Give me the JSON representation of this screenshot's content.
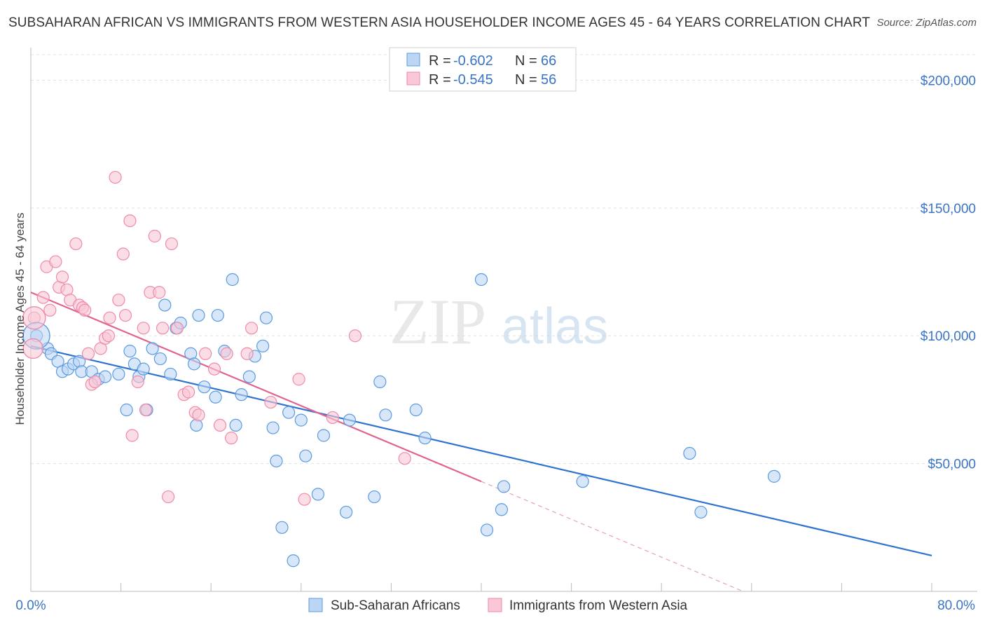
{
  "header": {
    "title": "SUBSAHARAN AFRICAN VS IMMIGRANTS FROM WESTERN ASIA HOUSEHOLDER INCOME AGES 45 - 64 YEARS CORRELATION CHART",
    "source": "Source: ZipAtlas.com"
  },
  "watermark": {
    "zip": "ZIP",
    "atlas": "atlas"
  },
  "legend": {
    "r_label": "R =",
    "n_label": "N =",
    "rows": [
      {
        "r": "-0.602",
        "n": "66",
        "color": "#5b9be0"
      },
      {
        "r": "-0.545",
        "n": "56",
        "color": "#f08aaa"
      }
    ]
  },
  "chart_data": {
    "type": "scatter",
    "title": "SUBSAHARAN AFRICAN VS IMMIGRANTS FROM WESTERN ASIA HOUSEHOLDER INCOME AGES 45 - 64 YEARS CORRELATION CHART",
    "xlabel": "",
    "ylabel": "Householder Income Ages 45 - 64 years",
    "xlim": [
      0,
      80
    ],
    "ylim": [
      0,
      210000
    ],
    "x_tick_labels": [
      "0.0%",
      "80.0%"
    ],
    "y_ticks": [
      {
        "value": 50000,
        "label": "$50,000"
      },
      {
        "value": 100000,
        "label": "$100,000"
      },
      {
        "value": 150000,
        "label": "$150,000"
      },
      {
        "value": 200000,
        "label": "$200,000"
      }
    ],
    "grid": true,
    "legend_position": "top-center",
    "series": [
      {
        "name": "Sub-Saharan Africans",
        "color": "#5b9be0",
        "trend": {
          "x0": 0,
          "y0": 96000,
          "x1": 80,
          "y1": 14000,
          "dashed_to": null
        },
        "points": [
          [
            0.5,
            100000
          ],
          [
            1.5,
            95000
          ],
          [
            1.8,
            93000
          ],
          [
            2.4,
            90000
          ],
          [
            2.8,
            86000
          ],
          [
            3.3,
            87000
          ],
          [
            3.8,
            89000
          ],
          [
            4.3,
            90000
          ],
          [
            4.5,
            86000
          ],
          [
            5.4,
            86000
          ],
          [
            6.0,
            83000
          ],
          [
            6.6,
            84000
          ],
          [
            7.8,
            85000
          ],
          [
            8.5,
            71000
          ],
          [
            8.8,
            94000
          ],
          [
            9.2,
            89000
          ],
          [
            9.6,
            84000
          ],
          [
            10.0,
            87000
          ],
          [
            10.3,
            71000
          ],
          [
            10.8,
            95000
          ],
          [
            11.5,
            91000
          ],
          [
            11.9,
            112000
          ],
          [
            12.4,
            85000
          ],
          [
            12.9,
            103000
          ],
          [
            13.3,
            105000
          ],
          [
            14.2,
            93000
          ],
          [
            14.5,
            89000
          ],
          [
            14.7,
            65000
          ],
          [
            14.9,
            108000
          ],
          [
            15.4,
            80000
          ],
          [
            16.4,
            76000
          ],
          [
            16.6,
            108000
          ],
          [
            17.2,
            94000
          ],
          [
            17.9,
            122000
          ],
          [
            18.2,
            65000
          ],
          [
            18.7,
            77000
          ],
          [
            19.4,
            84000
          ],
          [
            19.9,
            92000
          ],
          [
            20.6,
            96000
          ],
          [
            20.9,
            107000
          ],
          [
            21.5,
            64000
          ],
          [
            21.8,
            51000
          ],
          [
            22.3,
            25000
          ],
          [
            22.9,
            70000
          ],
          [
            23.3,
            12000
          ],
          [
            24.0,
            67000
          ],
          [
            24.4,
            53000
          ],
          [
            25.5,
            38000
          ],
          [
            26.0,
            61000
          ],
          [
            28.0,
            31000
          ],
          [
            28.3,
            67000
          ],
          [
            30.5,
            37000
          ],
          [
            31.0,
            82000
          ],
          [
            31.5,
            69000
          ],
          [
            34.2,
            71000
          ],
          [
            35.0,
            60000
          ],
          [
            40.0,
            122000
          ],
          [
            40.5,
            24000
          ],
          [
            41.8,
            32000
          ],
          [
            42.0,
            41000
          ],
          [
            49.0,
            43000
          ],
          [
            58.5,
            54000
          ],
          [
            59.5,
            31000
          ],
          [
            66.0,
            45000
          ]
        ]
      },
      {
        "name": "Immigrants from Western Asia",
        "color": "#f08aaa",
        "trend": {
          "x0": 0,
          "y0": 117000,
          "x1": 40,
          "y1": 43000,
          "dashed_to": {
            "x": 80,
            "y": -31000
          }
        },
        "points": [
          [
            0.3,
            107000
          ],
          [
            1.1,
            115000
          ],
          [
            1.4,
            127000
          ],
          [
            1.7,
            110000
          ],
          [
            2.2,
            129000
          ],
          [
            2.5,
            119000
          ],
          [
            2.8,
            123000
          ],
          [
            3.2,
            118000
          ],
          [
            3.5,
            114000
          ],
          [
            4.0,
            136000
          ],
          [
            4.3,
            112000
          ],
          [
            4.6,
            111000
          ],
          [
            4.8,
            110000
          ],
          [
            5.1,
            93000
          ],
          [
            5.4,
            81000
          ],
          [
            5.7,
            82000
          ],
          [
            6.2,
            95000
          ],
          [
            6.6,
            99000
          ],
          [
            6.9,
            100000
          ],
          [
            7.0,
            107000
          ],
          [
            7.5,
            162000
          ],
          [
            7.8,
            114000
          ],
          [
            8.2,
            132000
          ],
          [
            8.4,
            108000
          ],
          [
            8.8,
            145000
          ],
          [
            9.0,
            61000
          ],
          [
            9.5,
            82000
          ],
          [
            10.0,
            103000
          ],
          [
            10.2,
            71000
          ],
          [
            10.6,
            117000
          ],
          [
            11.0,
            139000
          ],
          [
            11.4,
            117000
          ],
          [
            11.7,
            103000
          ],
          [
            12.2,
            37000
          ],
          [
            12.5,
            136000
          ],
          [
            13.0,
            103000
          ],
          [
            13.6,
            77000
          ],
          [
            14.0,
            78000
          ],
          [
            14.6,
            70000
          ],
          [
            14.9,
            69000
          ],
          [
            15.5,
            93000
          ],
          [
            16.3,
            87000
          ],
          [
            16.8,
            65000
          ],
          [
            17.4,
            93000
          ],
          [
            17.8,
            60000
          ],
          [
            19.2,
            93000
          ],
          [
            19.6,
            103000
          ],
          [
            21.3,
            74000
          ],
          [
            23.8,
            83000
          ],
          [
            24.3,
            36000
          ],
          [
            26.8,
            68000
          ],
          [
            28.8,
            100000
          ],
          [
            33.2,
            52000
          ]
        ]
      }
    ]
  },
  "bottom_legend": [
    {
      "label": "Sub-Saharan Africans",
      "color": "#5b9be0"
    },
    {
      "label": "Immigrants from Western Asia",
      "color": "#f08aaa"
    }
  ]
}
